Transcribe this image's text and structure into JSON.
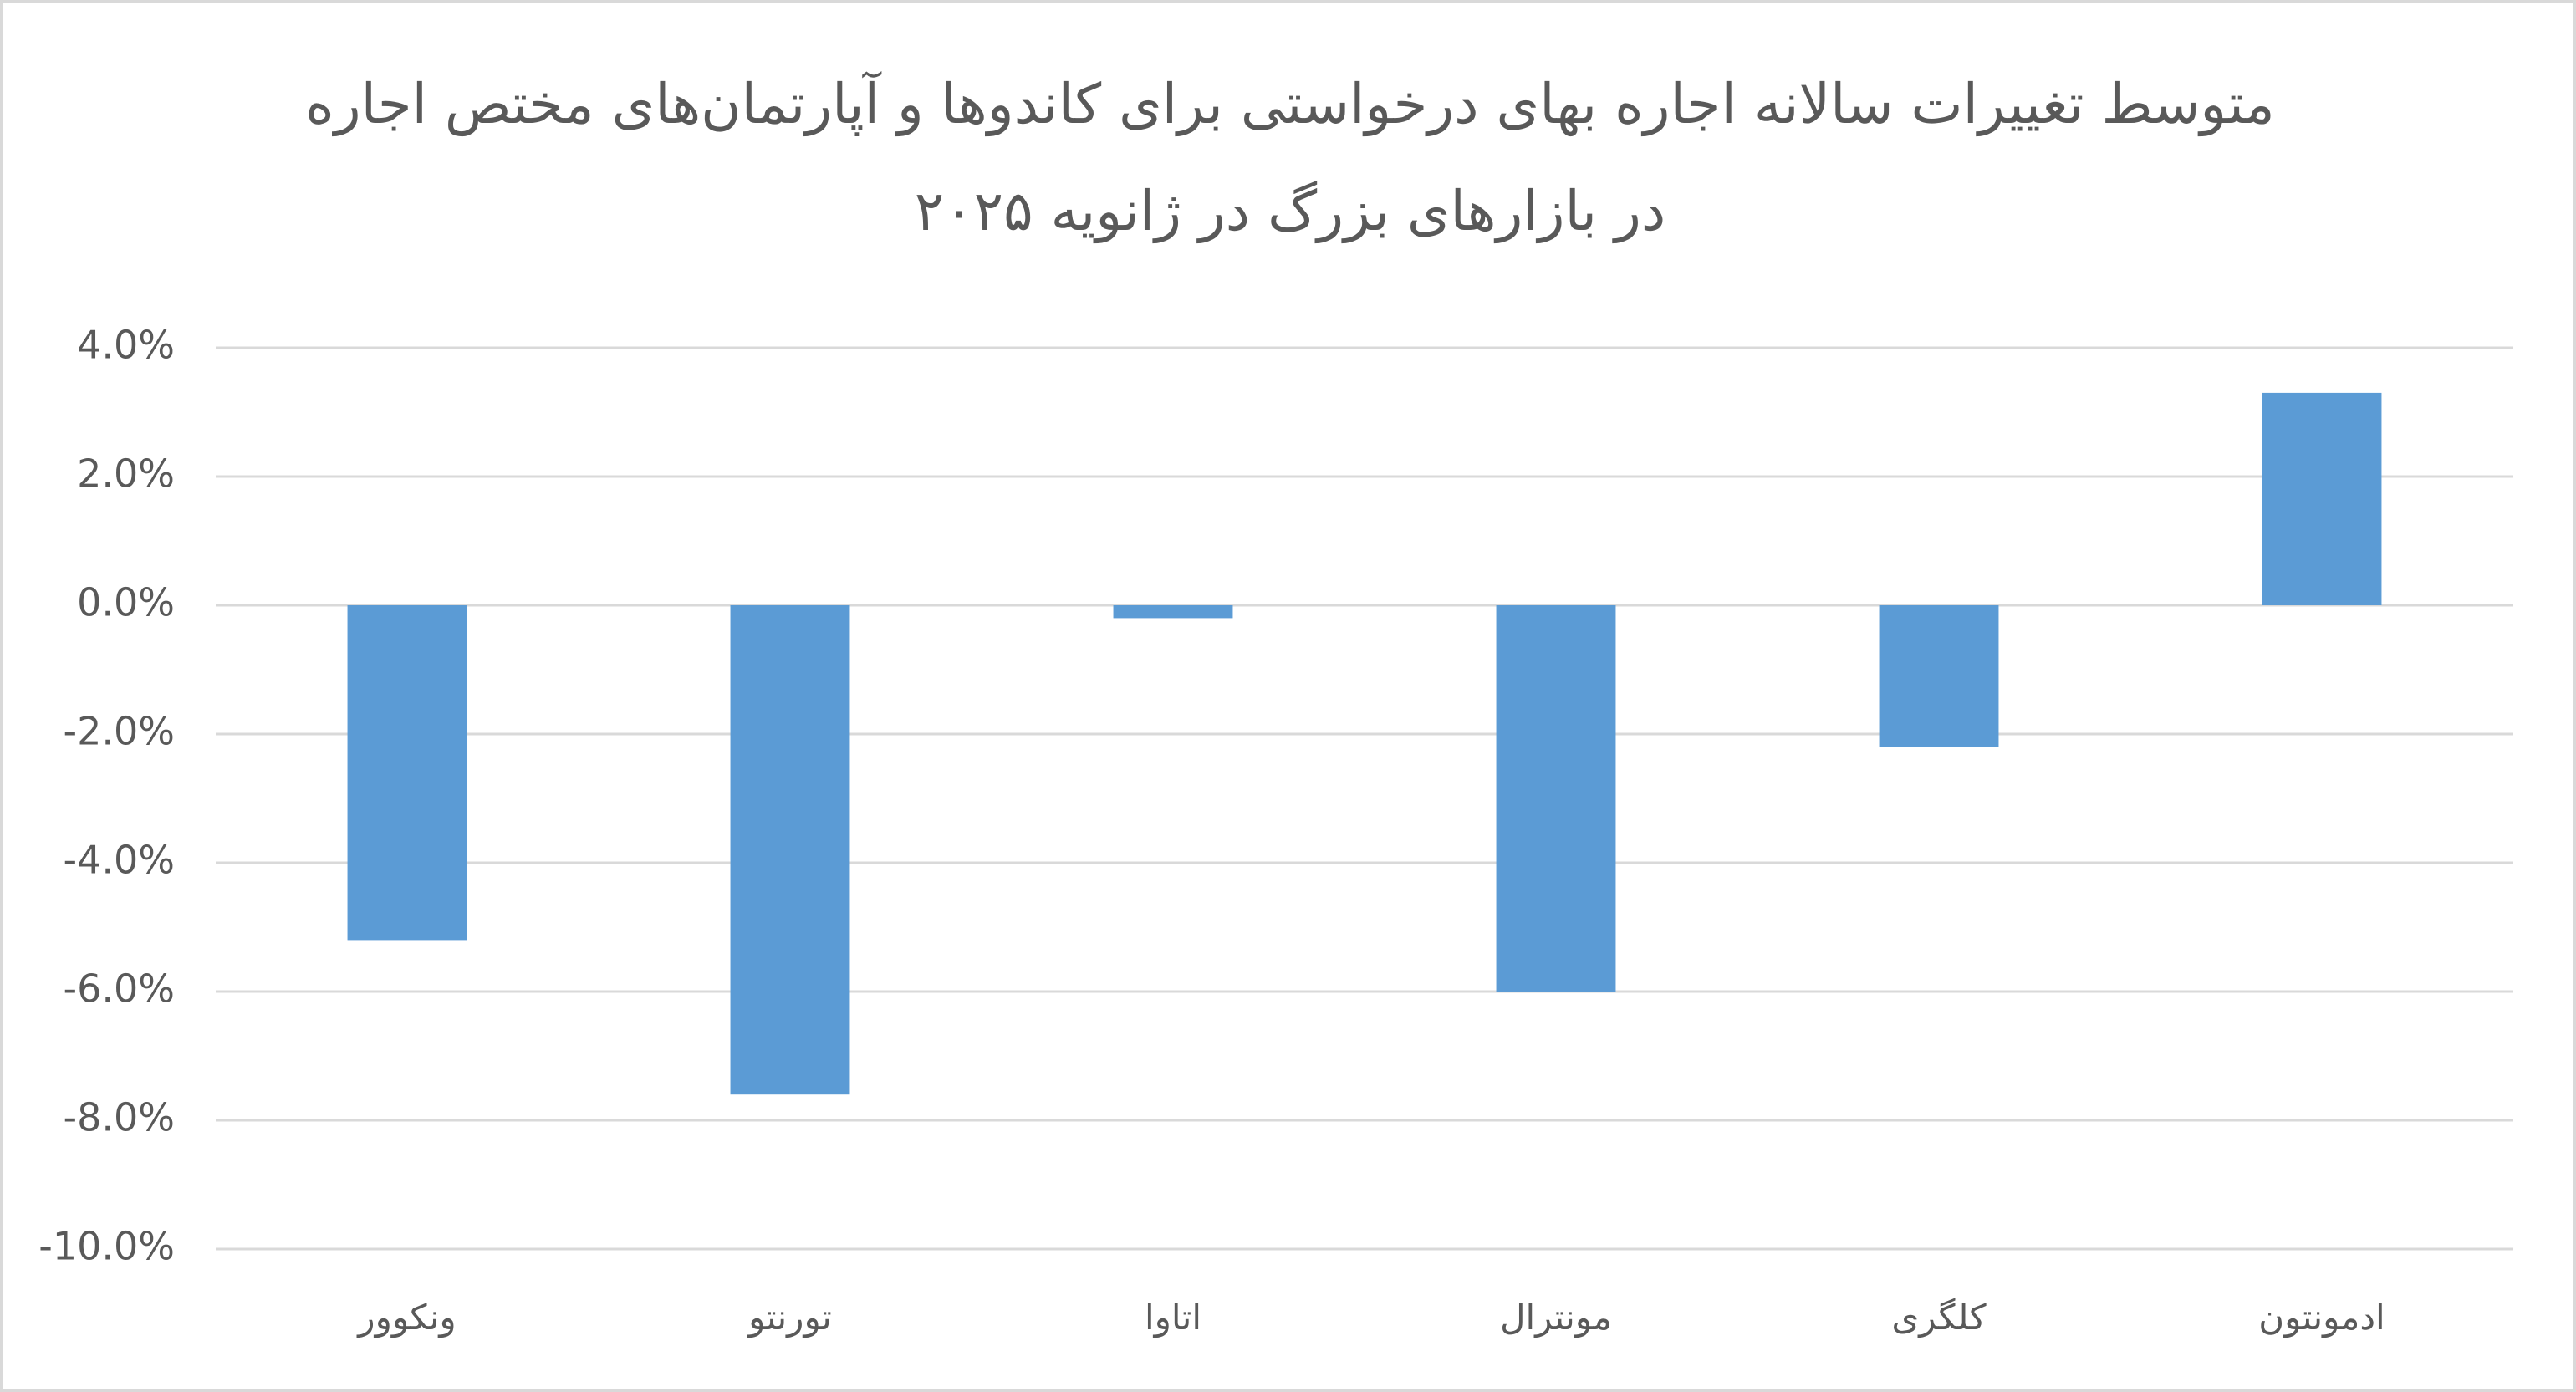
{
  "chart_data": {
    "type": "bar",
    "title": "متوسط تغییرات سالانه اجاره بهای درخواستی برای کاندوها و آپارتمان‌های مختص اجاره در بازارهای بزرگ در ژانویه ۲۰۲۵",
    "categories": [
      "ونکوور",
      "تورنتو",
      "اتاوا",
      "مونترال",
      "کلگری",
      "ادمونتون"
    ],
    "values": [
      -5.2,
      -7.6,
      -0.2,
      -6.0,
      -2.2,
      3.3
    ],
    "color": "#5b9bd5",
    "ylim": [
      -10,
      4
    ],
    "yticks": [
      {
        "value": -10,
        "label": "-10.0%"
      },
      {
        "value": -8,
        "label": "-8.0%"
      },
      {
        "value": -6,
        "label": "-6.0%"
      },
      {
        "value": -4,
        "label": "-4.0%"
      },
      {
        "value": -2,
        "label": "-2.0%"
      },
      {
        "value": 0,
        "label": "0.0%"
      },
      {
        "value": 2,
        "label": "2.0%"
      },
      {
        "value": 4,
        "label": "4.0%"
      }
    ],
    "grid": true
  }
}
